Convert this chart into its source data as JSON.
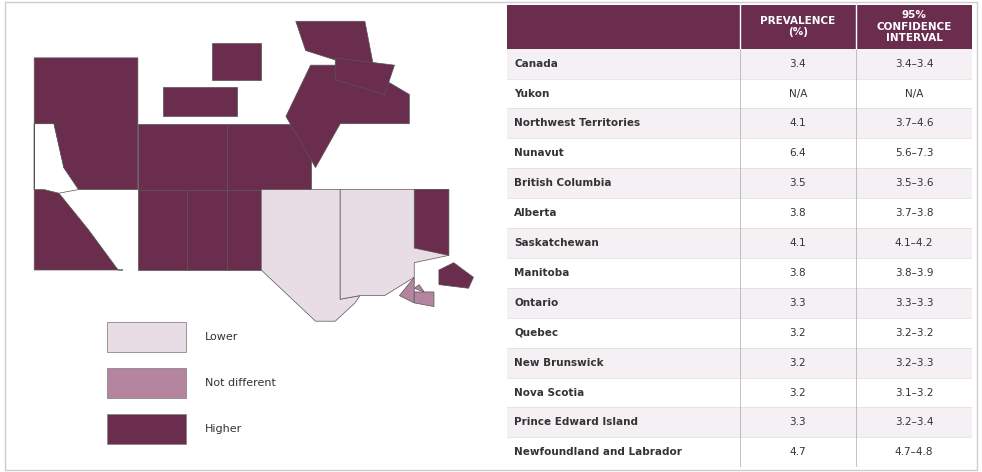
{
  "table_rows": [
    [
      "Canada",
      "3.4",
      "3.4–3.4"
    ],
    [
      "Yukon",
      "N/A",
      "N/A"
    ],
    [
      "Northwest Territories",
      "4.1",
      "3.7–4.6"
    ],
    [
      "Nunavut",
      "6.4",
      "5.6–7.3"
    ],
    [
      "British Columbia",
      "3.5",
      "3.5–3.6"
    ],
    [
      "Alberta",
      "3.8",
      "3.7–3.8"
    ],
    [
      "Saskatchewan",
      "4.1",
      "4.1–4.2"
    ],
    [
      "Manitoba",
      "3.8",
      "3.8–3.9"
    ],
    [
      "Ontario",
      "3.3",
      "3.3–3.3"
    ],
    [
      "Quebec",
      "3.2",
      "3.2–3.2"
    ],
    [
      "New Brunswick",
      "3.2",
      "3.2–3.3"
    ],
    [
      "Nova Scotia",
      "3.2",
      "3.1–3.2"
    ],
    [
      "Prince Edward Island",
      "3.3",
      "3.2–3.4"
    ],
    [
      "Newfoundland and Labrador",
      "4.7",
      "4.7–4.8"
    ]
  ],
  "col_headers": [
    "",
    "PREVALENCE\n(%)",
    "95%\nCONFIDENCE\nINTERVAL"
  ],
  "header_bg": "#6b2d4e",
  "header_text_color": "#ffffff",
  "row_colors_even": "#f5f0f3",
  "row_colors_odd": "#ffffff",
  "border_color": "#cccccc",
  "text_color": "#333333",
  "legend_lower_color": "#e8dce5",
  "legend_notdiff_color": "#b5849e",
  "legend_higher_color": "#6b2d4e",
  "legend_labels": [
    "Lower",
    "Not different",
    "Higher"
  ]
}
